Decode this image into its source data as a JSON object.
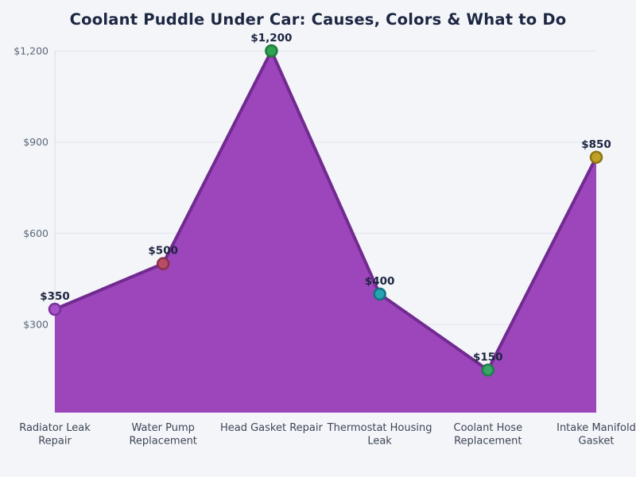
{
  "page": {
    "background_color": "#f3f5f9"
  },
  "chart_data": {
    "type": "area",
    "title": "Coolant Puddle Under Car: Causes, Colors & What to Do",
    "categories": [
      "Radiator Leak\nRepair",
      "Water Pump\nReplacement",
      "Head Gasket Repair",
      "Thermostat Housing\nLeak",
      "Coolant Hose\nReplacement",
      "Intake Manifold\nGasket"
    ],
    "values": [
      350,
      500,
      1200,
      400,
      150,
      850
    ],
    "point_labels": [
      "$350",
      "$500",
      "$1,200",
      "$400",
      "$150",
      "$850"
    ],
    "xlabel": "",
    "ylabel": "",
    "ylim": [
      10,
      1200
    ],
    "yticks": [
      {
        "value": 300,
        "label": "$300"
      },
      {
        "value": 600,
        "label": "$600"
      },
      {
        "value": 900,
        "label": "$900"
      },
      {
        "value": 1200,
        "label": "$1,200"
      }
    ],
    "grid": true,
    "legend": "none",
    "colors": {
      "area_fill": "#9d46bc",
      "line": "#712b90",
      "grid_line": "#e0e3ea",
      "axis_line": "#d8dce4",
      "title_text": "#1d2742",
      "value_label_text": "#1d2540",
      "category_label_text": "#3e4555",
      "ytick_label_text": "#5d6878"
    },
    "marker_colors": [
      {
        "fill": "#a452c5",
        "stroke": "#7b2f9d"
      },
      {
        "fill": "#b94d66",
        "stroke": "#8a3048"
      },
      {
        "fill": "#2fa351",
        "stroke": "#1d7b3a"
      },
      {
        "fill": "#27a2b0",
        "stroke": "#156f7c"
      },
      {
        "fill": "#37a566",
        "stroke": "#217c48"
      },
      {
        "fill": "#bfa224",
        "stroke": "#8c7613"
      }
    ]
  }
}
